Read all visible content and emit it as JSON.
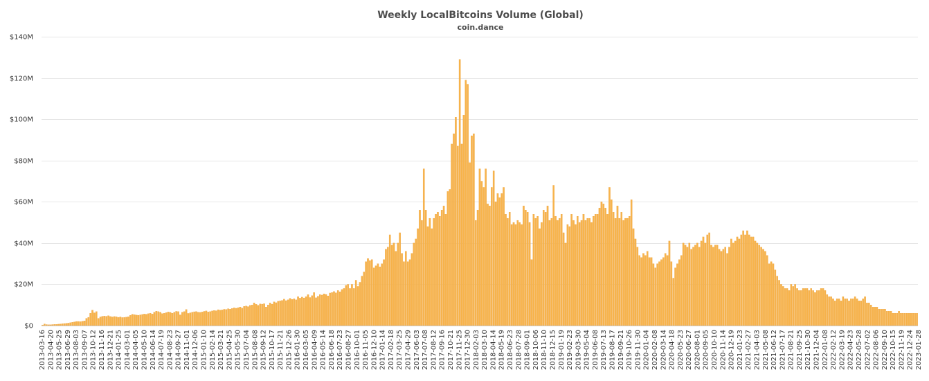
{
  "chart_data": {
    "type": "bar",
    "title": "Weekly LocalBitcoins Volume (Global)",
    "subtitle": "coin.dance",
    "xlabel": "",
    "ylabel": "",
    "bar_color": "#f7b44c",
    "bar_edge_color": "#eda03a",
    "grid": true,
    "ylim": [
      0,
      140000000
    ],
    "yticks": [
      {
        "value": 0,
        "label": "$0"
      },
      {
        "value": 20000000,
        "label": "$20M"
      },
      {
        "value": 40000000,
        "label": "$40M"
      },
      {
        "value": 60000000,
        "label": "$60M"
      },
      {
        "value": 80000000,
        "label": "$80M"
      },
      {
        "value": 100000000,
        "label": "$100M"
      },
      {
        "value": 120000000,
        "label": "$120M"
      },
      {
        "value": 140000000,
        "label": "$140M"
      }
    ],
    "first_week": "2013-03-16",
    "last_week": "2023-01-28",
    "categories": [
      "2013-03-16",
      "2013-04-20",
      "2013-05-25",
      "2013-06-29",
      "2013-08-03",
      "2013-09-07",
      "2013-10-12",
      "2013-11-16",
      "2013-12-21",
      "2014-01-25",
      "2014-03-01",
      "2014-04-05",
      "2014-05-10",
      "2014-06-14",
      "2014-07-19",
      "2014-08-23",
      "2014-09-27",
      "2014-11-01",
      "2014-12-06",
      "2015-01-10",
      "2015-02-14",
      "2015-03-21",
      "2015-04-25",
      "2015-05-30",
      "2015-07-04",
      "2015-08-08",
      "2015-09-12",
      "2015-10-17",
      "2015-11-21",
      "2015-12-26",
      "2016-01-30",
      "2016-03-05",
      "2016-04-09",
      "2016-05-14",
      "2016-06-18",
      "2016-07-23",
      "2016-08-27",
      "2016-10-01",
      "2016-11-05",
      "2016-12-10",
      "2017-01-14",
      "2017-02-18",
      "2017-03-25",
      "2017-04-29",
      "2017-06-03",
      "2017-07-08",
      "2017-08-12",
      "2017-09-16",
      "2017-10-21",
      "2017-11-25",
      "2017-12-30",
      "2018-02-03",
      "2018-03-10",
      "2018-04-14",
      "2018-05-19",
      "2018-06-23",
      "2018-07-28",
      "2018-09-01",
      "2018-10-06",
      "2018-11-10",
      "2018-12-15",
      "2019-01-19",
      "2019-02-23",
      "2019-03-30",
      "2019-05-04",
      "2019-06-08",
      "2019-07-13",
      "2019-08-17",
      "2019-09-21",
      "2019-10-26",
      "2019-11-30",
      "2020-01-04",
      "2020-02-08",
      "2020-03-14",
      "2020-04-18",
      "2020-05-23",
      "2020-06-27",
      "2020-08-01",
      "2020-09-05",
      "2020-10-10",
      "2020-11-14",
      "2020-12-19",
      "2021-01-23",
      "2021-02-27",
      "2021-04-03",
      "2021-05-08",
      "2021-06-12",
      "2021-07-17",
      "2021-08-21",
      "2021-09-25",
      "2021-10-30",
      "2021-12-04",
      "2022-01-08",
      "2022-02-12",
      "2022-03-19",
      "2022-04-23",
      "2022-05-28",
      "2022-07-02",
      "2022-08-06",
      "2022-09-10",
      "2022-10-15",
      "2022-11-19",
      "2022-12-24",
      "2023-01-28"
    ],
    "series": [
      {
        "values_millions": [
          0.3,
          0.8,
          0.5,
          0.4,
          0.4,
          0.5,
          0.6,
          0.6,
          0.7,
          0.8,
          0.9,
          1,
          1.1,
          1.2,
          1.4,
          1.6,
          1.8,
          2,
          2,
          1.9,
          2.1,
          2.3,
          3.5,
          4,
          6,
          7.5,
          6.2,
          6.8,
          3.5,
          4.2,
          4.5,
          4.6,
          4.5,
          4.8,
          4.4,
          4.2,
          4.4,
          4.3,
          4,
          4.2,
          3.9,
          4,
          4.1,
          4.3,
          5,
          5.5,
          5.3,
          5.1,
          5,
          5.2,
          5.4,
          5.6,
          5.5,
          5.8,
          6,
          5.6,
          6.5,
          7,
          6.8,
          6.5,
          5.8,
          6,
          6.3,
          6.6,
          6.4,
          6,
          6.5,
          6.9,
          6.8,
          5.2,
          6.5,
          6.8,
          7.8,
          5.9,
          6.2,
          6.5,
          6.7,
          6.8,
          6.5,
          6.4,
          6.6,
          6.9,
          7.1,
          6.6,
          6.8,
          7.1,
          7.3,
          7.2,
          7.7,
          7.5,
          7.6,
          7.9,
          7.8,
          8.2,
          8,
          8.3,
          8.6,
          8.4,
          8.7,
          9,
          8.5,
          9.3,
          9.5,
          9.2,
          9.8,
          10,
          11,
          10.3,
          9.8,
          10.5,
          10.4,
          10.6,
          9,
          10,
          11,
          10.4,
          11.5,
          11.1,
          11.8,
          12,
          12.2,
          12.8,
          12.1,
          12.5,
          13.2,
          12.7,
          13,
          12.5,
          14,
          13.3,
          13.8,
          13.4,
          14,
          15,
          13.6,
          14.5,
          16,
          13.5,
          14.2,
          15,
          14.8,
          15.4,
          15.1,
          14.4,
          15.8,
          16,
          16.5,
          15.9,
          17,
          16.4,
          17.5,
          18,
          19.5,
          20,
          18,
          20,
          18,
          22,
          19,
          21,
          24,
          26,
          31,
          32.5,
          31.5,
          32,
          28,
          29,
          30,
          28.5,
          30,
          32,
          37,
          38,
          44,
          39,
          40,
          36,
          40,
          45,
          35,
          31,
          36,
          31,
          32,
          35,
          40,
          42,
          47,
          56,
          51,
          76,
          56,
          48,
          52,
          47,
          52,
          54,
          55,
          53,
          56,
          58,
          54,
          65,
          66,
          88,
          93,
          101,
          87,
          129,
          88,
          102,
          119,
          117,
          79,
          92,
          93,
          51,
          56,
          76,
          70,
          67,
          76,
          59,
          58,
          67,
          75,
          60,
          64,
          62,
          64,
          67,
          54,
          52,
          55,
          49,
          50,
          49,
          51,
          50,
          49,
          58,
          56,
          55,
          50,
          32,
          54,
          52,
          53,
          47,
          50,
          56,
          55,
          58,
          51,
          52,
          68,
          53,
          51,
          52,
          54,
          45,
          40,
          49,
          48,
          54,
          51,
          49,
          53,
          50,
          51,
          54,
          51,
          52,
          52,
          50,
          53,
          54,
          54,
          57,
          60,
          59,
          57,
          54,
          67,
          61,
          55,
          52,
          58,
          52,
          55,
          51,
          52,
          52,
          53,
          61,
          47,
          42,
          38,
          34,
          33,
          35,
          34,
          36,
          33,
          33,
          30,
          28,
          30,
          31,
          32,
          33,
          35,
          34,
          41,
          31,
          23,
          28,
          30,
          32,
          34,
          40,
          39,
          38,
          40,
          37,
          38,
          39,
          40,
          38,
          41,
          43,
          40,
          44,
          45,
          39,
          38,
          39,
          39,
          37,
          36,
          37,
          38,
          35,
          38,
          42,
          40,
          41,
          43,
          42,
          44,
          46,
          44,
          46,
          44,
          43,
          43,
          41,
          40,
          39,
          38,
          37,
          36,
          34,
          30,
          31,
          30,
          27,
          24,
          22,
          20,
          19,
          18,
          18,
          17,
          20,
          19,
          20,
          18,
          17,
          17,
          18,
          18,
          18,
          17,
          18,
          17,
          16,
          17,
          17,
          18,
          18,
          17,
          15,
          14,
          14,
          13,
          12,
          13,
          13,
          12,
          14,
          13,
          13,
          12,
          13,
          13,
          14,
          13,
          12,
          12,
          13,
          14,
          11,
          11,
          10,
          9,
          9,
          9,
          8,
          8,
          8,
          8,
          7,
          7,
          7,
          6,
          6,
          6,
          7,
          6,
          6,
          6,
          6,
          6,
          6,
          6,
          6,
          6
        ]
      }
    ]
  }
}
